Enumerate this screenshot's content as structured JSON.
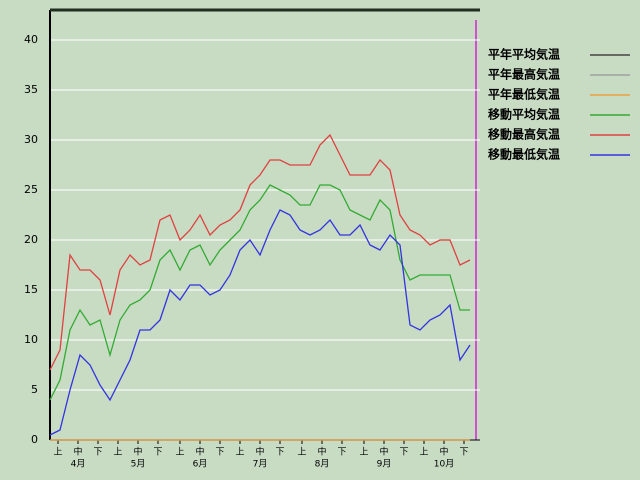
{
  "chart_data": {
    "type": "line",
    "x": [
      0,
      5,
      10,
      15,
      20,
      25,
      30,
      35,
      40,
      45,
      50,
      55,
      60,
      65,
      70,
      75,
      80,
      85,
      90,
      95,
      100,
      105,
      110,
      115,
      120,
      125,
      130,
      135,
      140,
      145,
      150,
      155,
      160,
      165,
      170,
      175,
      180,
      185,
      190,
      195,
      200,
      205,
      210
    ],
    "xlim": [
      0,
      215
    ],
    "xticks": [
      {
        "value": 4,
        "label": "上"
      },
      {
        "value": 14,
        "label": "中"
      },
      {
        "value": 24,
        "label": "下"
      },
      {
        "value": 34,
        "label": "上"
      },
      {
        "value": 44,
        "label": "中"
      },
      {
        "value": 54,
        "label": "下"
      },
      {
        "value": 65,
        "label": "上"
      },
      {
        "value": 75,
        "label": "中"
      },
      {
        "value": 85,
        "label": "下"
      },
      {
        "value": 95,
        "label": "上"
      },
      {
        "value": 105,
        "label": "中"
      },
      {
        "value": 115,
        "label": "下"
      },
      {
        "value": 126,
        "label": "上"
      },
      {
        "value": 136,
        "label": "中"
      },
      {
        "value": 146,
        "label": "下"
      },
      {
        "value": 157,
        "label": "上"
      },
      {
        "value": 167,
        "label": "中"
      },
      {
        "value": 177,
        "label": "下"
      },
      {
        "value": 187,
        "label": "上"
      },
      {
        "value": 197,
        "label": "中"
      },
      {
        "value": 207,
        "label": "下"
      }
    ],
    "month_labels": [
      {
        "value": 14,
        "label": "4月"
      },
      {
        "value": 44,
        "label": "5月"
      },
      {
        "value": 75,
        "label": "6月"
      },
      {
        "value": 105,
        "label": "7月"
      },
      {
        "value": 136,
        "label": "8月"
      },
      {
        "value": 167,
        "label": "9月"
      },
      {
        "value": 197,
        "label": "10月"
      }
    ],
    "ylim": [
      0,
      43
    ],
    "yticks": [
      0,
      5,
      10,
      15,
      20,
      25,
      30,
      35,
      40
    ],
    "grid": true,
    "series": [
      {
        "name": "平年平均気温",
        "color": "#444444",
        "values": [
          0,
          0,
          0,
          0,
          0,
          0,
          0,
          0,
          0,
          0,
          0,
          0,
          0,
          0,
          0,
          0,
          0,
          0,
          0,
          0,
          0,
          0,
          0,
          0,
          0,
          0,
          0,
          0,
          0,
          0,
          0,
          0,
          0,
          0,
          0,
          0,
          0,
          0,
          0,
          0,
          0,
          0,
          0
        ]
      },
      {
        "name": "平年最高気温",
        "color": "#a0a0a0",
        "values": [
          0,
          0,
          0,
          0,
          0,
          0,
          0,
          0,
          0,
          0,
          0,
          0,
          0,
          0,
          0,
          0,
          0,
          0,
          0,
          0,
          0,
          0,
          0,
          0,
          0,
          0,
          0,
          0,
          0,
          0,
          0,
          0,
          0,
          0,
          0,
          0,
          0,
          0,
          0,
          0,
          0,
          0,
          0
        ]
      },
      {
        "name": "平年最低気温",
        "color": "#e8a040",
        "values": [
          0,
          0,
          0,
          0,
          0,
          0,
          0,
          0,
          0,
          0,
          0,
          0,
          0,
          0,
          0,
          0,
          0,
          0,
          0,
          0,
          0,
          0,
          0,
          0,
          0,
          0,
          0,
          0,
          0,
          0,
          0,
          0,
          0,
          0,
          0,
          0,
          0,
          0,
          0,
          0,
          0,
          0,
          0
        ]
      },
      {
        "name": "移動平均気温",
        "color": "#33aa33",
        "values": [
          4,
          6,
          11,
          13,
          11.5,
          12,
          8.5,
          12,
          13.5,
          14,
          15,
          18,
          19,
          17,
          19,
          19.5,
          17.5,
          19,
          20,
          21,
          23,
          24,
          25.5,
          25,
          24.5,
          23.5,
          23.5,
          25.5,
          25.5,
          25,
          23,
          22.5,
          22,
          24,
          23,
          18,
          16,
          16.5,
          16.5,
          16.5,
          16.5,
          13,
          13
        ]
      },
      {
        "name": "移動最高気温",
        "color": "#e04040",
        "values": [
          7,
          9,
          18.5,
          17,
          17,
          16,
          12.5,
          17,
          18.5,
          17.5,
          18,
          22,
          22.5,
          20,
          21,
          22.5,
          20.5,
          21.5,
          22,
          23,
          25.5,
          26.5,
          28,
          28,
          27.5,
          27.5,
          27.5,
          29.5,
          30.5,
          28.5,
          26.5,
          26.5,
          26.5,
          28,
          27,
          22.5,
          21,
          20.5,
          19.5,
          20,
          20,
          17.5,
          18
        ]
      },
      {
        "name": "移動最低気温",
        "color": "#3333e0",
        "values": [
          0.5,
          1,
          5,
          8.5,
          7.5,
          5.5,
          4,
          6,
          8,
          11,
          11,
          12,
          15,
          14,
          15.5,
          15.5,
          14.5,
          15,
          16.5,
          19,
          20,
          18.5,
          21,
          23,
          22.5,
          21,
          20.5,
          21,
          22,
          20.5,
          20.5,
          21.5,
          19.5,
          19,
          20.5,
          19.5,
          11.5,
          11,
          12,
          12.5,
          13.5,
          8,
          9.5
        ]
      }
    ]
  }
}
